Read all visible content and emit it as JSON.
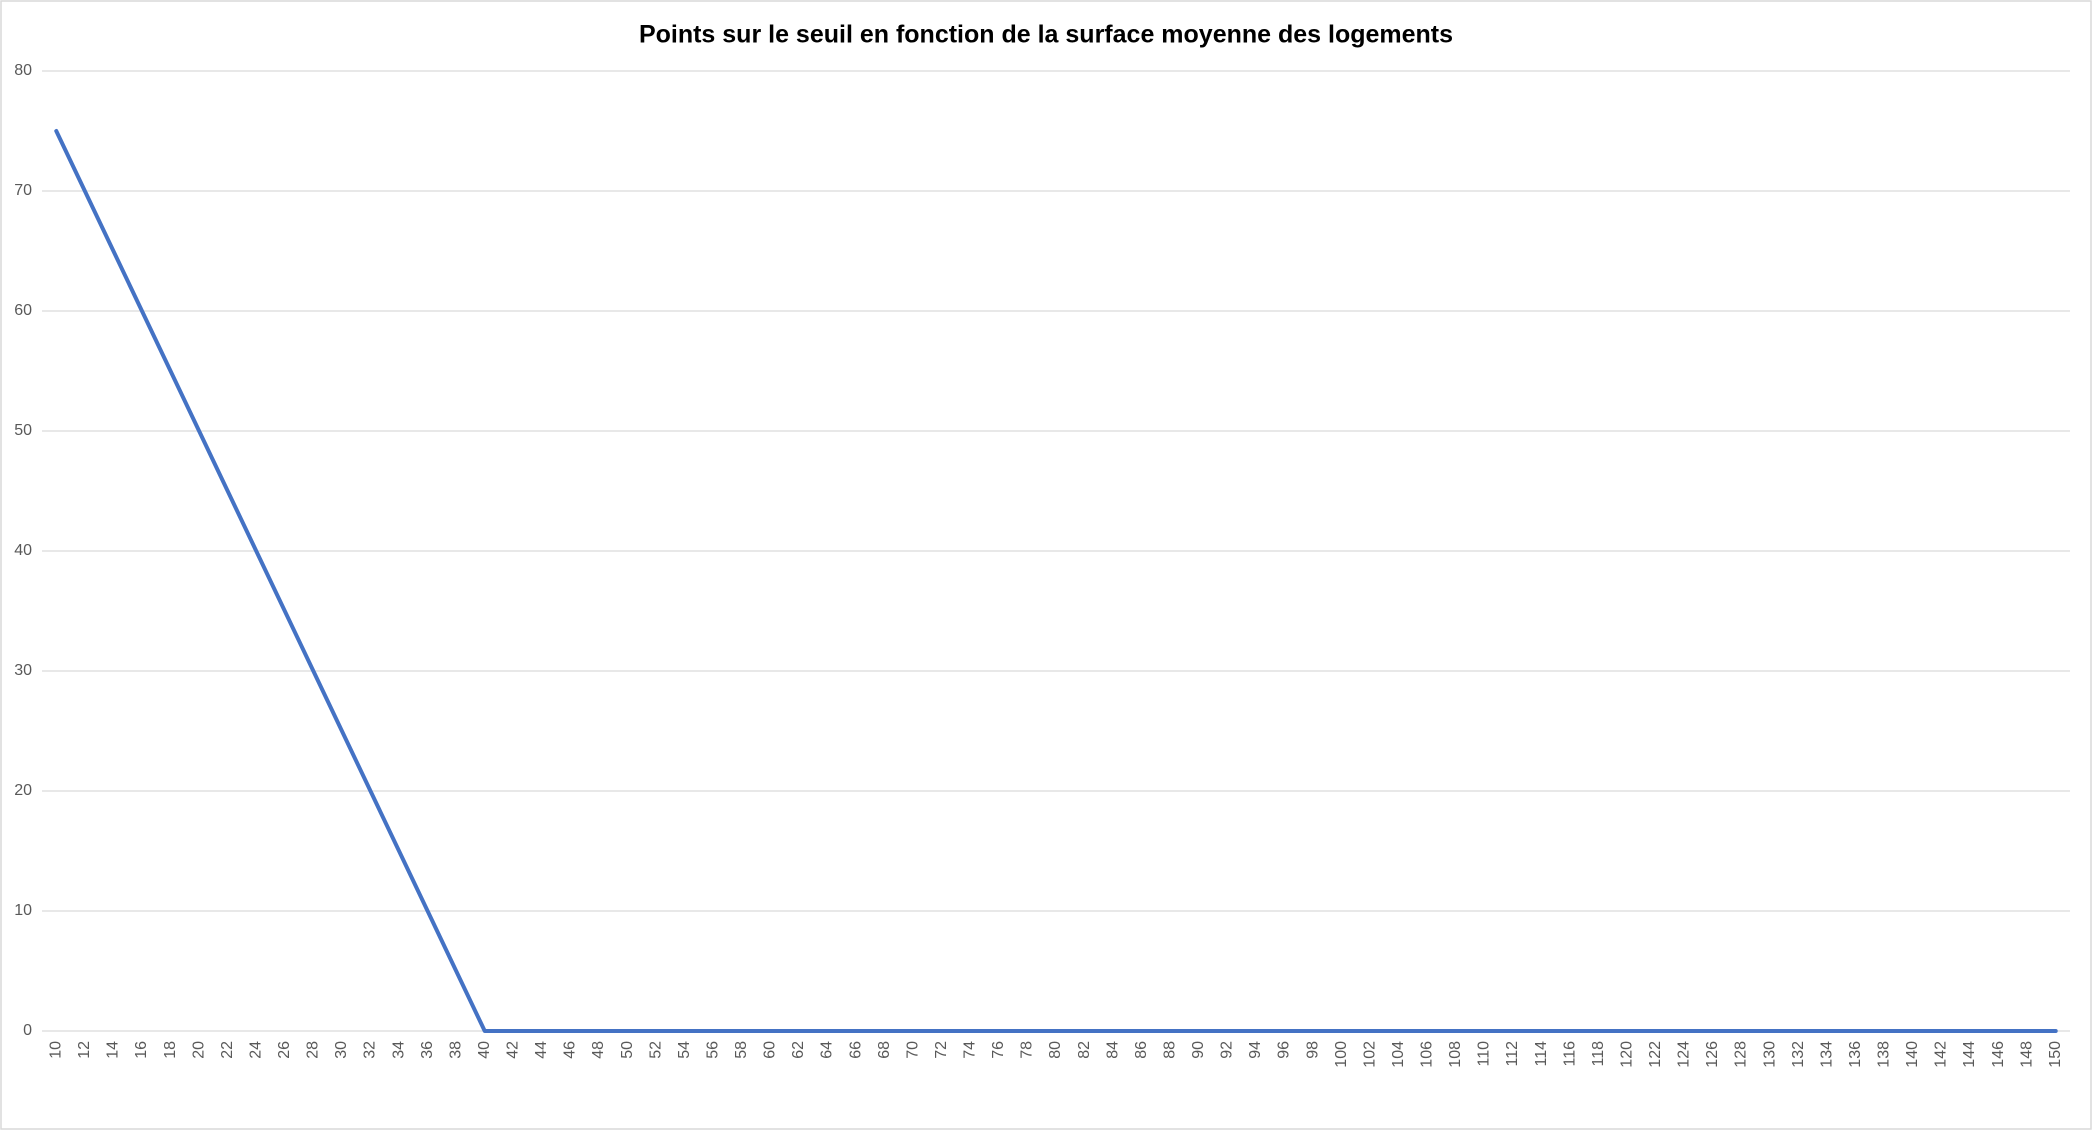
{
  "chart_data": {
    "type": "line",
    "title": "Points sur le seuil en fonction de la surface moyenne des logements",
    "categories": [
      10,
      12,
      14,
      16,
      18,
      20,
      22,
      24,
      26,
      28,
      30,
      32,
      34,
      36,
      38,
      40,
      42,
      44,
      46,
      48,
      50,
      52,
      54,
      56,
      58,
      60,
      62,
      64,
      66,
      68,
      70,
      72,
      74,
      76,
      78,
      80,
      82,
      84,
      86,
      88,
      90,
      92,
      94,
      96,
      98,
      100,
      102,
      104,
      106,
      108,
      110,
      112,
      114,
      116,
      118,
      120,
      122,
      124,
      126,
      128,
      130,
      132,
      134,
      136,
      138,
      140,
      142,
      144,
      146,
      148,
      150
    ],
    "values": [
      75,
      70,
      65,
      60,
      55,
      50,
      45,
      40,
      35,
      30,
      25,
      20,
      15,
      10,
      5,
      0,
      0,
      0,
      0,
      0,
      0,
      0,
      0,
      0,
      0,
      0,
      0,
      0,
      0,
      0,
      0,
      0,
      0,
      0,
      0,
      0,
      0,
      0,
      0,
      0,
      0,
      0,
      0,
      0,
      0,
      0,
      0,
      0,
      0,
      0,
      0,
      0,
      0,
      0,
      0,
      0,
      0,
      0,
      0,
      0,
      0,
      0,
      0,
      0,
      0,
      0,
      0,
      0,
      0,
      0,
      0
    ],
    "color": "#4472c4",
    "ylim": [
      0,
      80
    ],
    "yticks": [
      0,
      10,
      20,
      30,
      40,
      50,
      60,
      70,
      80
    ],
    "grid": true
  }
}
